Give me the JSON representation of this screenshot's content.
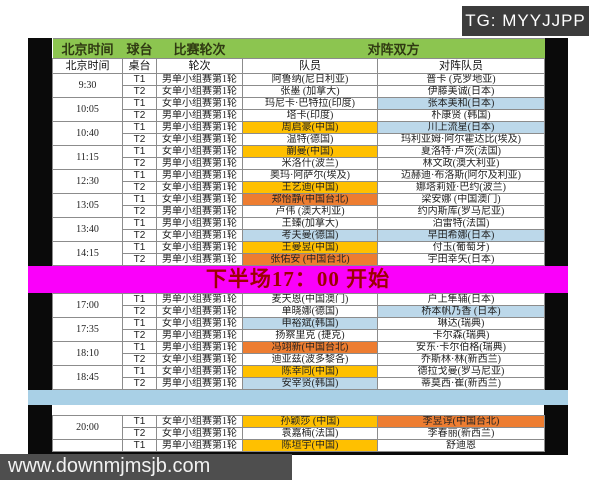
{
  "badges": {
    "tg": "TG: MYYJJPP",
    "site": "www.downmjmsjb.com"
  },
  "colors": {
    "header_green": "#8CC550",
    "china_gold": "#FFC000",
    "taipei_orange": "#ED7D31",
    "highlight_blue": "#BCD8EA",
    "separator_blue": "#A9D0E6",
    "banner_magenta": "#FA00FA",
    "banner_text": "#9C0000"
  },
  "table": {
    "header": {
      "time": "北京时间",
      "court": "球台",
      "round": "比赛轮次",
      "matchup": "对阵双方"
    },
    "subheader": {
      "time": "北京时间",
      "court": "桌台",
      "round": "轮次",
      "player": "队员",
      "opponent": "对阵队员"
    },
    "banner": "下半场17：00 开始",
    "sections": {
      "morning": [
        {
          "time": "9:30",
          "matches": [
            {
              "court": "T1",
              "round": "男单小组赛第1轮",
              "player": "阿鲁纳(尼日利亚)",
              "opponent": "普卡 (克罗地亚)"
            },
            {
              "court": "T2",
              "round": "女单小组赛第1轮",
              "player": "张墨 (加拿大)",
              "opponent": "伊藤美诚(日本)"
            }
          ]
        },
        {
          "time": "10:05",
          "matches": [
            {
              "court": "T1",
              "round": "女单小组赛第1轮",
              "player": "玛尼卡·巴特拉(印度)",
              "opponent": "张本美和(日本)",
              "opponent_hl": "blue"
            },
            {
              "court": "T2",
              "round": "男单小组赛第1轮",
              "player": "塔卡(印度)",
              "opponent": "朴康贤 (韩国)"
            }
          ]
        },
        {
          "time": "10:40",
          "matches": [
            {
              "court": "T1",
              "round": "男单小组赛第1轮",
              "player": "周启豪(中国)",
              "player_hl": "gold",
              "opponent": "川上流星(日本)",
              "opponent_hl": "blue"
            },
            {
              "court": "T2",
              "round": "女单小组赛第1轮",
              "player": "温特(德国)",
              "opponent": "玛利亚姆·阿尔霍达比(埃及)"
            }
          ]
        },
        {
          "time": "11:15",
          "matches": [
            {
              "court": "T1",
              "round": "女单小组赛第1轮",
              "player": "蒯曼(中国)",
              "player_hl": "gold",
              "opponent": "夏洛特·卢茨(法国)"
            },
            {
              "court": "T2",
              "round": "男单小组赛第1轮",
              "player": "米洛什(波兰)",
              "opponent": "林文政(澳大利亚)"
            }
          ]
        },
        {
          "time": "12:30",
          "matches": [
            {
              "court": "T1",
              "round": "男单小组赛第1轮",
              "player": "奥玛·阿萨尔(埃及)",
              "opponent": "迈赫迪·布洛斯(阿尔及利亚)"
            },
            {
              "court": "T2",
              "round": "女单小组赛第1轮",
              "player": "王艺迪(中国)",
              "player_hl": "gold",
              "opponent": "娜塔莉娅·巴约(波兰)"
            }
          ]
        },
        {
          "time": "13:05",
          "matches": [
            {
              "court": "T1",
              "round": "女单小组赛第1轮",
              "player": "郑怡静(中国台北)",
              "player_hl": "orange",
              "opponent": "梁安娜 (中国澳门)"
            },
            {
              "court": "T2",
              "round": "男单小组赛第1轮",
              "player": "卢伟 (澳大利亚)",
              "opponent": "约内斯库(罗马尼亚)"
            }
          ]
        },
        {
          "time": "13:40",
          "matches": [
            {
              "court": "T1",
              "round": "男单小组赛第1轮",
              "player": "王臻(加拿大)",
              "opponent": "泊雷特(法国)"
            },
            {
              "court": "T2",
              "round": "女单小组赛第1轮",
              "player": "考夫曼(德国)",
              "player_hl": "blue",
              "opponent": "早田希娜(日本)",
              "opponent_hl": "blue"
            }
          ]
        },
        {
          "time": "14:15",
          "matches": [
            {
              "court": "T1",
              "round": "女单小组赛第1轮",
              "player": "王曼昱(中国)",
              "player_hl": "gold",
              "opponent": "付玉(葡萄牙)"
            },
            {
              "court": "T2",
              "round": "男单小组赛第1轮",
              "player": "张佑安 (中国台北)",
              "player_hl": "orange",
              "opponent": "宇田幸矢(日本)"
            }
          ]
        }
      ],
      "afternoon": [
        {
          "time": "17:00",
          "matches": [
            {
              "court": "T1",
              "round": "男单小组赛第1轮",
              "player": "麦天恩(中国澳门)",
              "opponent": "户上隼辅(日本)"
            },
            {
              "court": "T2",
              "round": "女单小组赛第1轮",
              "player": "单晓娜(德国)",
              "opponent": "桥本帆乃香 (日本)",
              "opponent_hl": "blue"
            }
          ]
        },
        {
          "time": "17:35",
          "matches": [
            {
              "court": "T1",
              "round": "女单小组赛第1轮",
              "player": "申裕斌(韩国)",
              "player_hl": "blue",
              "opponent": "琳达(瑞典)"
            },
            {
              "court": "T2",
              "round": "男单小组赛第1轮",
              "player": "扬察里克 (捷克)",
              "opponent": "卡尔森(瑞典)"
            }
          ]
        },
        {
          "time": "18:10",
          "matches": [
            {
              "court": "T1",
              "round": "男单小组赛第1轮",
              "player": "冯翊新(中国台北)",
              "player_hl": "orange",
              "opponent": "安东·卡尔伯格(瑞典)"
            },
            {
              "court": "T2",
              "round": "女单小组赛第1轮",
              "player": "迪亚兹(波多黎各)",
              "opponent": "乔斯林·林(新西兰)"
            }
          ]
        },
        {
          "time": "18:45",
          "matches": [
            {
              "court": "T1",
              "round": "女单小组赛第1轮",
              "player": "陈幸同(中国)",
              "player_hl": "gold",
              "opponent": "德拉戈曼(罗马尼亚)"
            },
            {
              "court": "T2",
              "round": "男单小组赛第1轮",
              "player": "安宰贤(韩国)",
              "player_hl": "blue",
              "opponent": "蒂莫西·崔(新西兰)"
            }
          ]
        }
      ],
      "evening": [
        {
          "time": "20:00",
          "matches": [
            {
              "court": "T1",
              "round": "女单小组赛第1轮",
              "player": "孙颖莎 (中国)",
              "player_hl": "gold",
              "opponent": "李昱谆(中国台北)",
              "opponent_hl": "orange"
            },
            {
              "court": "T2",
              "round": "女单小组赛第1轮",
              "player": "袁嘉楠(法国)",
              "opponent": "李春丽(新西兰)"
            }
          ]
        },
        {
          "time": "",
          "matches": [
            {
              "court": "T1",
              "round": "男单小组赛第1轮",
              "player": "陈垣宇(中国)",
              "player_hl": "gold",
              "opponent": "舒迪恩"
            }
          ]
        }
      ]
    }
  }
}
